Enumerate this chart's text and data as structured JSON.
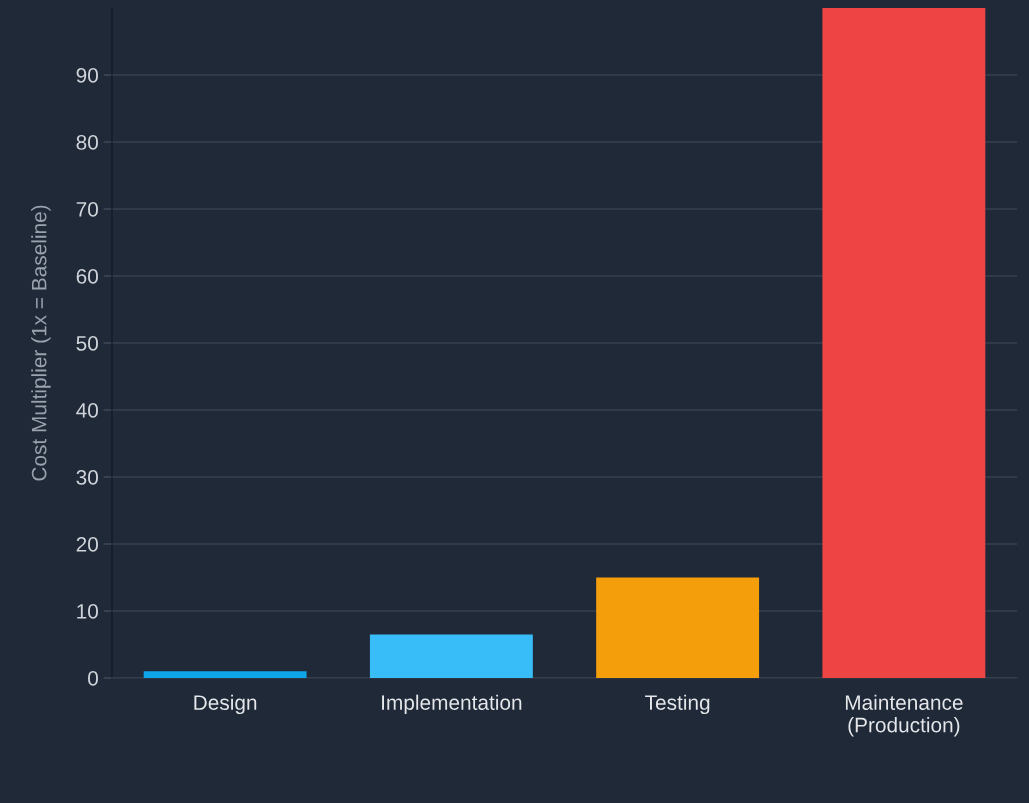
{
  "chart_data": {
    "type": "bar",
    "ylabel": "Cost Multiplier (1x = Baseline)",
    "categories": [
      "Design",
      "Implementation",
      "Testing",
      "Maintenance\n(Production)"
    ],
    "values": [
      1,
      6.5,
      15,
      100
    ],
    "colors": [
      "#0ea5e9",
      "#38bdf8",
      "#f59e0b",
      "#ef4444"
    ],
    "ylim": [
      0,
      100
    ],
    "yticks": [
      0,
      10,
      20,
      30,
      40,
      50,
      60,
      70,
      80,
      90
    ],
    "grid": "y",
    "legend": false
  }
}
